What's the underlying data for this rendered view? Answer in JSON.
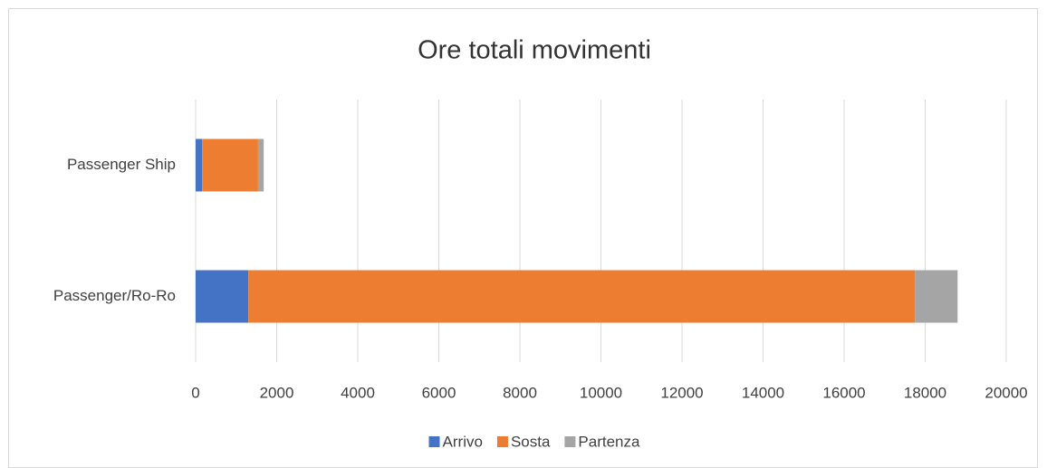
{
  "chart_data": {
    "type": "stacked_bar_horizontal",
    "title": "Ore totali movimenti",
    "categories": [
      "Passenger Ship",
      "Passenger/Ro-Ro"
    ],
    "series": [
      {
        "name": "Arrivo",
        "color": "#4472c4",
        "values": [
          160,
          1300
        ]
      },
      {
        "name": "Sosta",
        "color": "#ed7d31",
        "values": [
          1380,
          16450
        ]
      },
      {
        "name": "Partenza",
        "color": "#a5a5a5",
        "values": [
          140,
          1050
        ]
      }
    ],
    "xlim": [
      0,
      20000
    ],
    "xticks": [
      0,
      2000,
      4000,
      6000,
      8000,
      10000,
      12000,
      14000,
      16000,
      18000,
      20000
    ],
    "grid": true,
    "legend": "bottom"
  }
}
